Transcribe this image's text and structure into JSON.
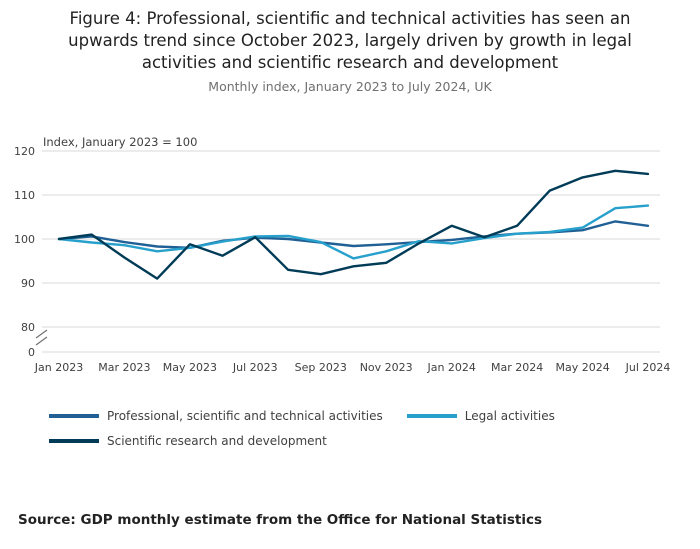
{
  "header": {
    "title": "Figure 4: Professional, scientific and technical activities has seen an upwards trend since October 2023, largely driven by growth in legal activities and scientific research and development",
    "subtitle": "Monthly index, January 2023 to July 2024, UK"
  },
  "chart_data": {
    "type": "line",
    "axis_note": "Index, January 2023 = 100",
    "x": [
      "Jan 2023",
      "Feb 2023",
      "Mar 2023",
      "Apr 2023",
      "May 2023",
      "Jun 2023",
      "Jul 2023",
      "Aug 2023",
      "Sep 2023",
      "Oct 2023",
      "Nov 2023",
      "Dec 2023",
      "Jan 2024",
      "Feb 2024",
      "Mar 2024",
      "Apr 2024",
      "May 2024",
      "Jun 2024",
      "Jul 2024"
    ],
    "x_tick_labels": [
      "Jan 2023",
      "Mar 2023",
      "May 2023",
      "Jul 2023",
      "Sep 2023",
      "Nov 2023",
      "Jan 2024",
      "Mar 2024",
      "May 2024",
      "Jul 2024"
    ],
    "y_ticks": [
      0,
      80,
      90,
      100,
      110,
      120
    ],
    "ylim": [
      80,
      120
    ],
    "axis_break": true,
    "grid": "horizontal",
    "legend_position": "bottom",
    "series": [
      {
        "name": "Professional, scientific and technical activities",
        "color": "#206095",
        "values": [
          100,
          100.6,
          99.3,
          98.3,
          98.0,
          99.6,
          100.3,
          100.0,
          99.2,
          98.4,
          98.8,
          99.3,
          99.8,
          100.6,
          101.2,
          101.5,
          102.0,
          104.0,
          103.0
        ]
      },
      {
        "name": "Legal activities",
        "color": "#27A0CC",
        "values": [
          100,
          99.2,
          98.6,
          97.2,
          98.0,
          99.4,
          100.6,
          100.7,
          99.3,
          95.6,
          97.2,
          99.5,
          99.0,
          100.2,
          101.2,
          101.6,
          102.6,
          107.0,
          107.6
        ]
      },
      {
        "name": "Scientific research and development",
        "color": "#003C57",
        "values": [
          100,
          101.0,
          95.8,
          91.0,
          98.8,
          96.2,
          100.4,
          93.0,
          92.0,
          93.8,
          94.6,
          99.0,
          103.0,
          100.4,
          103.0,
          111.0,
          114.0,
          115.5,
          114.8
        ]
      }
    ]
  },
  "colors": {
    "gridline": "#d9d9d9",
    "axis_text": "#414042",
    "break_mark": "#707071"
  },
  "source": "Source: GDP monthly estimate from the Office for National Statistics"
}
